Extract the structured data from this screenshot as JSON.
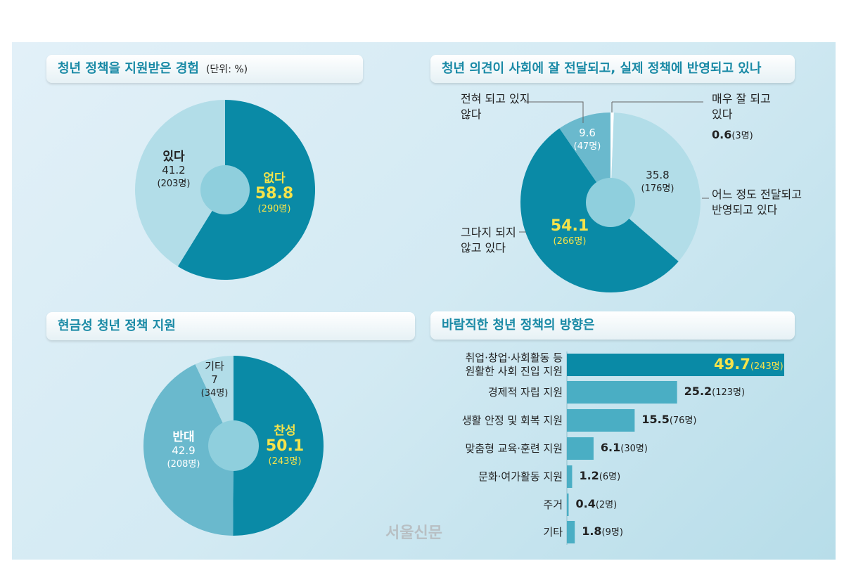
{
  "watermark": "서울신문",
  "chart_data": [
    {
      "type": "pie",
      "title": "청년 정책을 지원받은 경험",
      "unit": "(단위: %)",
      "slices": [
        {
          "label": "없다",
          "value": 58.8,
          "count": "(290명)",
          "color": "#0a8aa6"
        },
        {
          "label": "있다",
          "value": 41.2,
          "count": "(203명)",
          "color": "#b2dde8"
        }
      ],
      "hole_color": "#8fcfdd"
    },
    {
      "type": "pie",
      "title": "청년 의견이 사회에 잘 전달되고, 실제 정책에 반영되고 있나",
      "slices": [
        {
          "label": "매우 잘 되고 있다",
          "value": 0.6,
          "count": "(3명)",
          "color": "#ffffff"
        },
        {
          "label": "어느 정도 전달되고 반영되고 있다",
          "value": 35.8,
          "count": "(176명)",
          "color": "#b2dde8"
        },
        {
          "label": "그다지 되지 않고 있다",
          "value": 54.1,
          "count": "(266명)",
          "color": "#0a8aa6"
        },
        {
          "label": "전혀 되고 있지 않다",
          "value": 9.6,
          "count": "(47명)",
          "color": "#6ab9cd"
        }
      ],
      "hole_color": "#8fcfdd"
    },
    {
      "type": "pie",
      "title": "현금성 청년 정책 지원",
      "slices": [
        {
          "label": "찬성",
          "value": 50.1,
          "count": "(243명)",
          "color": "#0a8aa6"
        },
        {
          "label": "반대",
          "value": 42.9,
          "count": "(208명)",
          "color": "#6ab9cd"
        },
        {
          "label": "기타",
          "value": 7.0,
          "count": "(34명)",
          "color": "#b2dde8"
        }
      ],
      "hole_color": "#8fcfdd"
    },
    {
      "type": "bar",
      "orientation": "horizontal",
      "title": "바람직한 청년 정책의 방향은",
      "categories": [
        "취업·창업·사회활동 등 원활한 사회 진입 지원",
        "경제적 자립 지원",
        "생활 안정 및 회복 지원",
        "맞춤형 교육·훈련 지원",
        "문화·여가활동 지원",
        "주거",
        "기타"
      ],
      "category_lines": [
        [
          "취업·창업·사회활동 등",
          "원활한 사회 진입 지원"
        ],
        [
          "경제적 자립 지원"
        ],
        [
          "생활 안정 및 회복 지원"
        ],
        [
          "맞춤형 교육·훈련 지원"
        ],
        [
          "문화·여가활동 지원"
        ],
        [
          "주거"
        ],
        [
          "기타"
        ]
      ],
      "values": [
        49.7,
        25.2,
        15.5,
        6.1,
        1.2,
        0.4,
        1.8
      ],
      "value_labels": [
        "49.7",
        "25.2",
        "15.5",
        "6.1",
        "1.2",
        "0.4",
        "1.8"
      ],
      "counts": [
        "(243명)",
        "(123명)",
        "(76명)",
        "(30명)",
        "(6명)",
        "(2명)",
        "(9명)"
      ],
      "colors": {
        "highlight": "#0a8aa6",
        "default": "#4aaec4"
      }
    }
  ]
}
